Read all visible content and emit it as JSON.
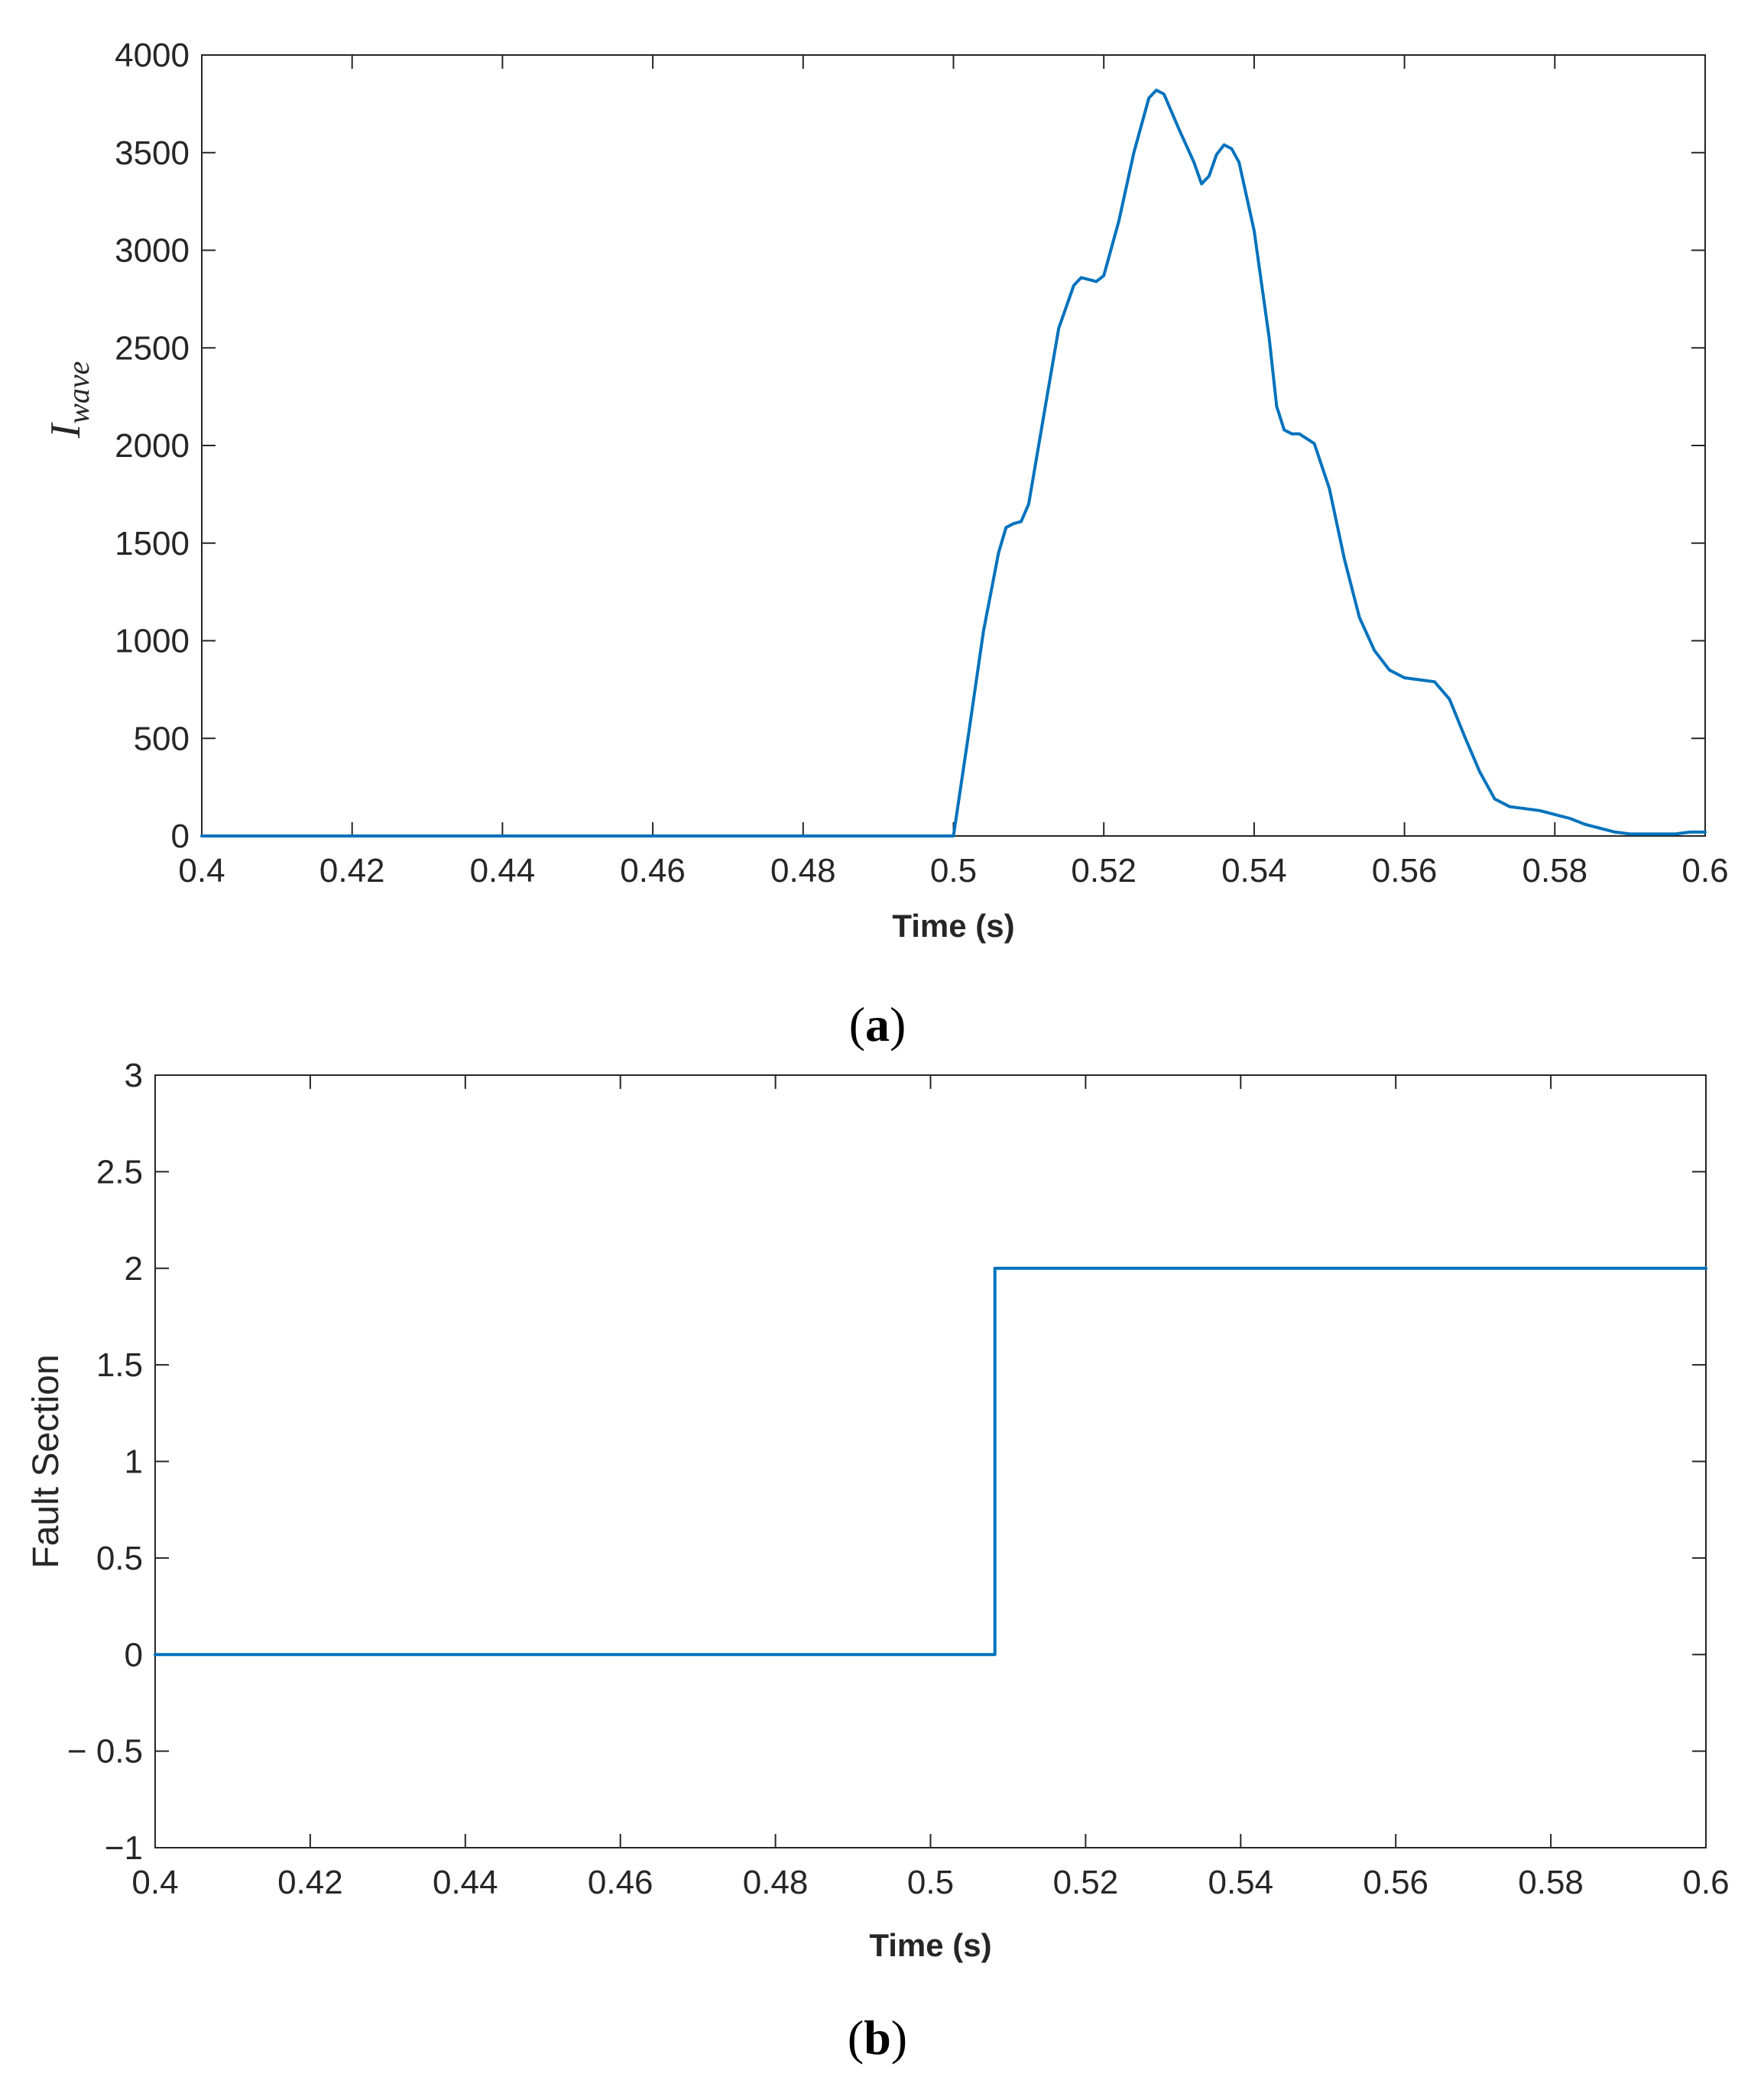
{
  "colors": {
    "series": "#0072BD",
    "axes": "#262626",
    "background": "#ffffff"
  },
  "panels": {
    "a": {
      "label_open": "(",
      "label_letter": "a",
      "label_close": ")"
    },
    "b": {
      "label_open": "(",
      "label_letter": "b",
      "label_close": ")"
    }
  },
  "chart_data": [
    {
      "id": "a",
      "type": "line",
      "xlabel": "Time (s)",
      "ylabel": "I",
      "ylabel_subscript": "wave",
      "xlim": [
        0.4,
        0.6
      ],
      "ylim": [
        0,
        4000
      ],
      "xticks": [
        0.4,
        0.42,
        0.44,
        0.46,
        0.48,
        0.5,
        0.52,
        0.54,
        0.56,
        0.58,
        0.6
      ],
      "xtick_labels": [
        "0.4",
        "0.42",
        "0.44",
        "0.46",
        "0.48",
        "0.5",
        "0.52",
        "0.54",
        "0.56",
        "0.58",
        "0.6"
      ],
      "yticks": [
        0,
        500,
        1000,
        1500,
        2000,
        2500,
        3000,
        3500,
        4000
      ],
      "ytick_labels": [
        "0",
        "500",
        "1000",
        "1500",
        "2000",
        "2500",
        "3000",
        "3500",
        "4000"
      ],
      "grid": false,
      "series": [
        {
          "x": [
            0.4,
            0.5,
            0.502,
            0.504,
            0.506,
            0.507,
            0.508,
            0.509,
            0.51,
            0.512,
            0.514,
            0.516,
            0.517,
            0.518,
            0.519,
            0.52,
            0.522,
            0.524,
            0.526,
            0.527,
            0.528,
            0.53,
            0.532,
            0.533,
            0.534,
            0.535,
            0.536,
            0.537,
            0.538,
            0.54,
            0.542,
            0.543,
            0.544,
            0.545,
            0.546,
            0.548,
            0.55,
            0.552,
            0.554,
            0.556,
            0.558,
            0.56,
            0.562,
            0.564,
            0.566,
            0.568,
            0.57,
            0.572,
            0.574,
            0.576,
            0.578,
            0.58,
            0.582,
            0.584,
            0.586,
            0.588,
            0.59,
            0.592,
            0.594,
            0.596,
            0.598,
            0.6
          ],
          "y": [
            0,
            0,
            520,
            1050,
            1450,
            1580,
            1600,
            1610,
            1700,
            2150,
            2600,
            2820,
            2860,
            2850,
            2840,
            2870,
            3150,
            3500,
            3780,
            3820,
            3800,
            3620,
            3450,
            3340,
            3380,
            3490,
            3540,
            3520,
            3450,
            3100,
            2550,
            2200,
            2080,
            2060,
            2060,
            2010,
            1780,
            1420,
            1120,
            950,
            850,
            810,
            800,
            790,
            700,
            510,
            330,
            190,
            150,
            140,
            130,
            110,
            90,
            60,
            40,
            20,
            10,
            10,
            10,
            10,
            20,
            20
          ]
        }
      ]
    },
    {
      "id": "b",
      "type": "line",
      "xlabel": "Time (s)",
      "ylabel": "Fault Section",
      "xlim": [
        0.4,
        0.6
      ],
      "ylim": [
        -1,
        3
      ],
      "xticks": [
        0.4,
        0.42,
        0.44,
        0.46,
        0.48,
        0.5,
        0.52,
        0.54,
        0.56,
        0.58,
        0.6
      ],
      "xtick_labels": [
        "0.4",
        "0.42",
        "0.44",
        "0.46",
        "0.48",
        "0.5",
        "0.52",
        "0.54",
        "0.56",
        "0.58",
        "0.6"
      ],
      "yticks": [
        -1,
        -0.5,
        0,
        0.5,
        1,
        1.5,
        2,
        2.5,
        3
      ],
      "ytick_labels": [
        "−1",
        "− 0.5",
        "0",
        "0.5",
        "1",
        "1.5",
        "2",
        "2.5",
        "3"
      ],
      "grid": false,
      "series": [
        {
          "x": [
            0.4,
            0.5083,
            0.5083,
            0.6
          ],
          "y": [
            0,
            0,
            2,
            2
          ]
        }
      ]
    }
  ]
}
